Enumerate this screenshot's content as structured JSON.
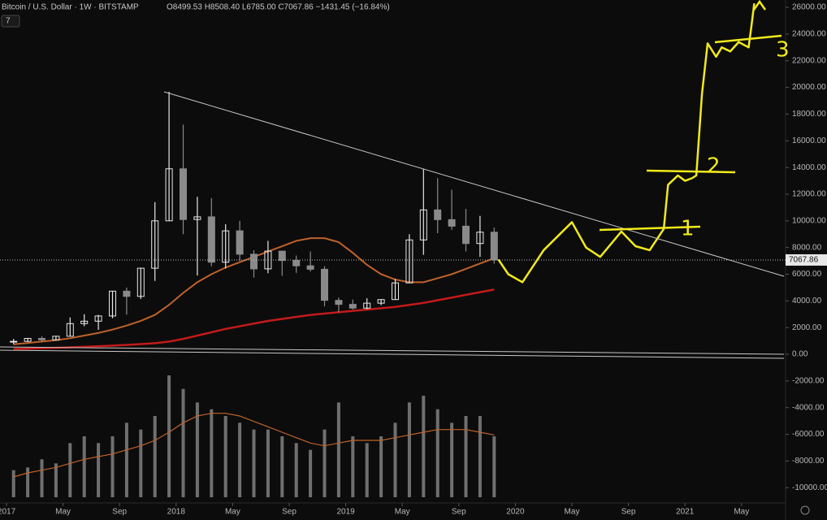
{
  "chart_data": {
    "type": "candlestick",
    "title": "Bitcoin / U.S. Dollar · 1W · BITSTAMP",
    "ohlc_legend": "O8499.53 H8508.40 L6785.00 C7067.86 −1431.45 (−16.84%)",
    "indicator_count": "7",
    "x": [
      0.5,
      1.5,
      2.5,
      3.5,
      4.5,
      5.5,
      6.5,
      7.5,
      8.5,
      9.5,
      10.5,
      11.5,
      12.5,
      13.5,
      14.5,
      15.5,
      16.5,
      17.5,
      18.5,
      19.5,
      20.5,
      21.5,
      22.5,
      23.5,
      24.5,
      25.5,
      26.5,
      27.5,
      28.5,
      29.5,
      30.5,
      31.5,
      32.5,
      33.5,
      34.5
    ],
    "ohlc": [
      [
        970,
        1150,
        750,
        970
      ],
      [
        970,
        1200,
        920,
        1190
      ],
      [
        1190,
        1350,
        890,
        1080
      ],
      [
        1080,
        1350,
        1080,
        1350
      ],
      [
        1350,
        2760,
        1350,
        2300
      ],
      [
        2300,
        3000,
        2100,
        2480
      ],
      [
        2480,
        2950,
        1830,
        2870
      ],
      [
        2870,
        4750,
        2700,
        4730
      ],
      [
        4730,
        5000,
        2970,
        4340
      ],
      [
        4340,
        6470,
        4140,
        6450
      ],
      [
        6450,
        11400,
        5500,
        10000
      ],
      [
        10000,
        19666,
        10000,
        13900
      ],
      [
        13900,
        17200,
        9000,
        10100
      ],
      [
        10100,
        11800,
        5900,
        10300
      ],
      [
        10300,
        11700,
        6600,
        6900
      ],
      [
        6900,
        9750,
        6430,
        9250
      ],
      [
        9250,
        10000,
        7000,
        7500
      ],
      [
        7500,
        7800,
        5750,
        6400
      ],
      [
        6400,
        8500,
        6070,
        7730
      ],
      [
        7730,
        7760,
        5880,
        7030
      ],
      [
        7030,
        7400,
        6100,
        6630
      ],
      [
        6630,
        7700,
        6200,
        6370
      ],
      [
        6370,
        6600,
        3600,
        4040
      ],
      [
        4040,
        4250,
        3130,
        3740
      ],
      [
        3740,
        4100,
        3350,
        3460
      ],
      [
        3460,
        4200,
        3370,
        3830
      ],
      [
        3830,
        4120,
        3680,
        4100
      ],
      [
        4100,
        5650,
        4100,
        5350
      ],
      [
        5350,
        9000,
        5350,
        8570
      ],
      [
        8570,
        13880,
        7450,
        10820
      ],
      [
        10820,
        13200,
        9070,
        10090
      ],
      [
        10090,
        12330,
        9330,
        9600
      ],
      [
        9600,
        10900,
        7710,
        8300
      ],
      [
        8300,
        10370,
        7300,
        9150
      ],
      [
        9150,
        9500,
        6785,
        7068
      ]
    ],
    "up_color": "#e8e8e8",
    "down_color": "#8a8a8a",
    "series": [
      {
        "color": "#c0622a",
        "values": [
          750,
          850,
          950,
          1050,
          1200,
          1400,
          1600,
          1850,
          2150,
          2500,
          2950,
          3700,
          4600,
          5400,
          6000,
          6500,
          6900,
          7300,
          7700,
          8100,
          8500,
          8700,
          8700,
          8400,
          7600,
          6700,
          6000,
          5600,
          5400,
          5400,
          5700,
          6000,
          6400,
          6800,
          7200
        ]
      },
      {
        "color": "#c41a1a",
        "values": [
          400,
          420,
          450,
          480,
          520,
          560,
          600,
          650,
          700,
          760,
          830,
          950,
          1150,
          1400,
          1650,
          1900,
          2100,
          2300,
          2500,
          2650,
          2800,
          2950,
          3050,
          3150,
          3250,
          3350,
          3450,
          3550,
          3700,
          3850,
          4050,
          4250,
          4450,
          4650,
          4850
        ]
      }
    ],
    "volume": [
      20,
      22,
      28,
      25,
      40,
      45,
      40,
      45,
      55,
      50,
      60,
      90,
      80,
      70,
      65,
      60,
      55,
      50,
      50,
      45,
      40,
      35,
      50,
      70,
      45,
      40,
      45,
      55,
      70,
      75,
      65,
      55,
      60,
      60,
      45
    ],
    "volume_ma": [
      15,
      18,
      20,
      22,
      25,
      28,
      30,
      32,
      35,
      38,
      42,
      48,
      55,
      60,
      62,
      62,
      60,
      56,
      52,
      48,
      44,
      40,
      38,
      40,
      42,
      42,
      42,
      44,
      46,
      48,
      50,
      50,
      50,
      48,
      46
    ],
    "volume_color": "#9a9a9a",
    "volume_ma_color": "#c0622a",
    "projection": {
      "color": "#f2ea1a",
      "x": [
        34.8,
        35.5,
        36.5,
        38,
        40,
        41,
        42,
        43.5,
        44.5,
        45.5,
        46.5,
        46.8,
        47.5,
        48,
        48.5,
        48.8,
        49.2,
        49.6,
        50.2,
        50.6,
        51.2,
        51.8,
        52.5,
        52.7,
        52.9
      ],
      "values": [
        7100,
        6000,
        5400,
        7800,
        9900,
        8000,
        7300,
        9200,
        8100,
        7800,
        9400,
        12700,
        13400,
        13000,
        13200,
        13400,
        19500,
        23300,
        22300,
        23000,
        22700,
        23400,
        23000,
        24600,
        26300
      ]
    },
    "annotations": [
      "1",
      "2",
      "3"
    ],
    "last_price": 7067.86,
    "last_price_label": "7067.86",
    "xlim": [
      -0.46,
      55
    ],
    "ylim": [
      -11080,
      26550
    ],
    "xticks": [
      {
        "value": 0,
        "label": "2017"
      },
      {
        "value": 4,
        "label": "May"
      },
      {
        "value": 8,
        "label": "Sep"
      },
      {
        "value": 12,
        "label": "2018"
      },
      {
        "value": 16,
        "label": "May"
      },
      {
        "value": 20,
        "label": "Sep"
      },
      {
        "value": 24,
        "label": "2019"
      },
      {
        "value": 28,
        "label": "May"
      },
      {
        "value": 32,
        "label": "Sep"
      },
      {
        "value": 36,
        "label": "2020"
      },
      {
        "value": 40,
        "label": "May"
      },
      {
        "value": 44,
        "label": "Sep"
      },
      {
        "value": 48,
        "label": "2021"
      },
      {
        "value": 52,
        "label": "May"
      }
    ],
    "yticks": [
      {
        "value": 26000,
        "label": "26000.00"
      },
      {
        "value": 24000,
        "label": "24000.00"
      },
      {
        "value": 22000,
        "label": "22000.00"
      },
      {
        "value": 20000,
        "label": "20000.00"
      },
      {
        "value": 18000,
        "label": "18000.00"
      },
      {
        "value": 16000,
        "label": "16000.00"
      },
      {
        "value": 14000,
        "label": "14000.00"
      },
      {
        "value": 12000,
        "label": "12000.00"
      },
      {
        "value": 10000,
        "label": "10000.00"
      },
      {
        "value": 8000,
        "label": "8000.00"
      },
      {
        "value": 6000,
        "label": "6000.00"
      },
      {
        "value": 4000,
        "label": "4000.00"
      },
      {
        "value": 2000,
        "label": "2000.00"
      },
      {
        "value": 0,
        "label": "0.00"
      },
      {
        "value": -2000,
        "label": "-2000.00"
      },
      {
        "value": -4000,
        "label": "-4000.00"
      },
      {
        "value": -6000,
        "label": "-6000.00"
      },
      {
        "value": -8000,
        "label": "-8000.00"
      },
      {
        "value": -10000,
        "label": "-10000.00"
      }
    ]
  }
}
